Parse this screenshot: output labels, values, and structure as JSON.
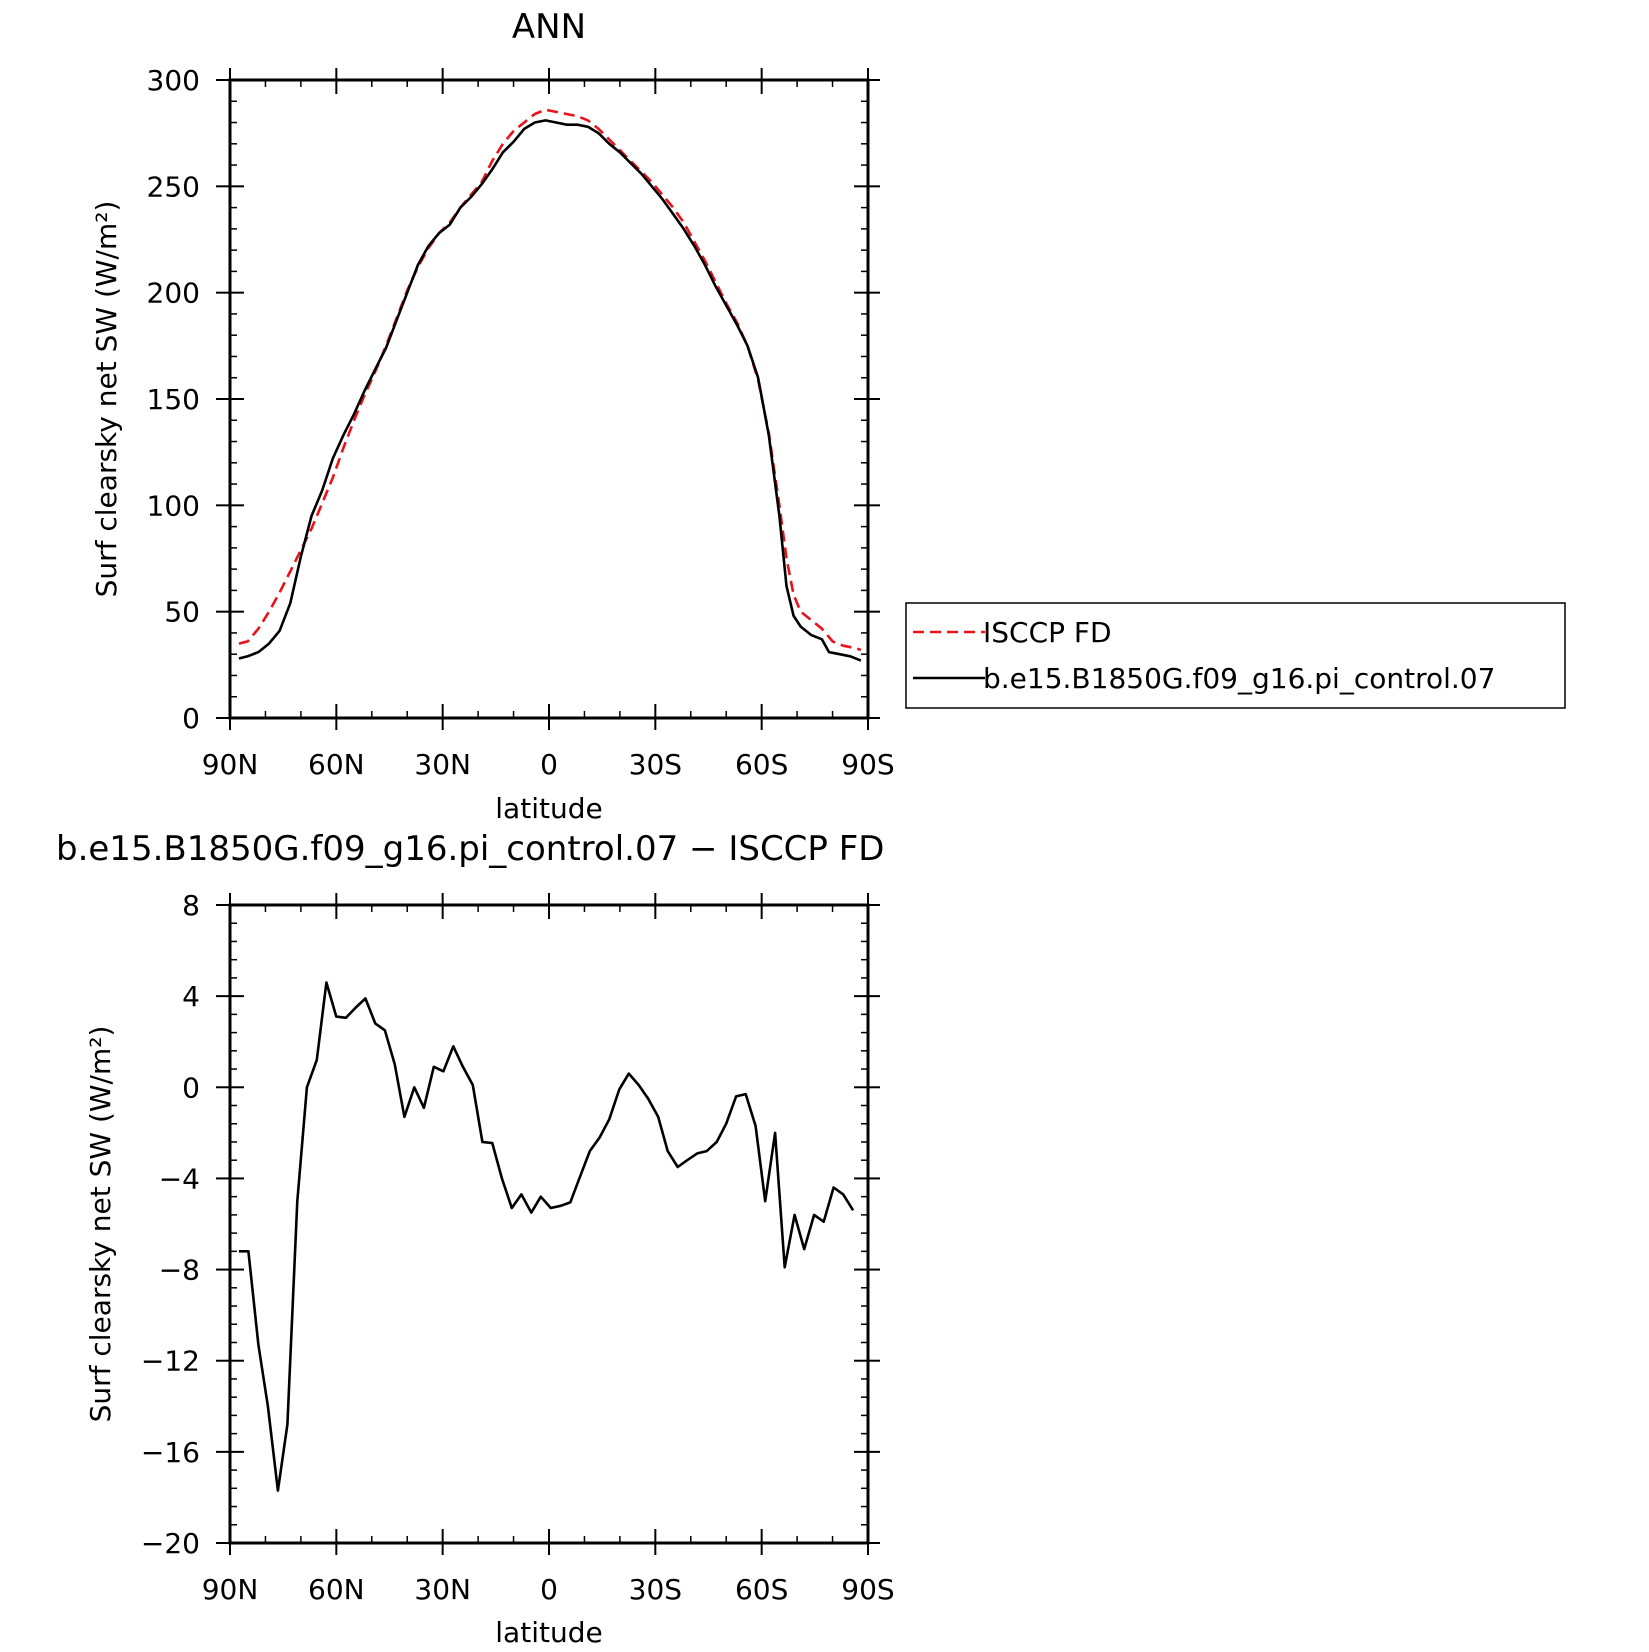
{
  "chart_data": [
    {
      "type": "line",
      "title": "ANN",
      "xlabel": "latitude",
      "ylabel": "Surf clearsky net SW (W/m²)",
      "xlim": [
        90,
        -90
      ],
      "ylim": [
        0,
        300
      ],
      "xticks": [
        90,
        60,
        30,
        0,
        -30,
        -60,
        -90
      ],
      "xtick_labels": [
        "90N",
        "60N",
        "30N",
        "0",
        "30S",
        "60S",
        "90S"
      ],
      "yticks": [
        0,
        50,
        100,
        150,
        200,
        250,
        300
      ],
      "ytick_labels": [
        "0",
        "50",
        "100",
        "150",
        "200",
        "250",
        "300"
      ],
      "legend_position": "right",
      "series": [
        {
          "name": "ISCCP FD",
          "color": "#e8141a",
          "dash": "dashed",
          "points": [
            [
              87.5,
              35
            ],
            [
              85,
              36
            ],
            [
              82,
              42
            ],
            [
              79,
              50
            ],
            [
              76,
              59
            ],
            [
              73,
              69
            ],
            [
              70,
              79
            ],
            [
              67,
              89
            ],
            [
              64,
              101
            ],
            [
              61,
              113
            ],
            [
              58,
              127
            ],
            [
              55,
              140
            ],
            [
              52,
              152
            ],
            [
              49,
              163
            ],
            [
              46,
              175
            ],
            [
              43,
              188
            ],
            [
              40,
              201
            ],
            [
              37,
              212
            ],
            [
              34,
              221
            ],
            [
              31,
              228
            ],
            [
              28,
              233
            ],
            [
              25,
              240
            ],
            [
              22,
              246
            ],
            [
              19,
              252
            ],
            [
              16,
              262
            ],
            [
              13,
              270
            ],
            [
              10,
              276
            ],
            [
              7,
              280
            ],
            [
              4,
              284
            ],
            [
              1,
              286
            ],
            [
              -2,
              285
            ],
            [
              -5,
              284
            ],
            [
              -8,
              283
            ],
            [
              -11,
              281
            ],
            [
              -14,
              277
            ],
            [
              -17,
              272
            ],
            [
              -20,
              267
            ],
            [
              -23,
              262
            ],
            [
              -26,
              257
            ],
            [
              -29,
              252
            ],
            [
              -32,
              246
            ],
            [
              -35,
              240
            ],
            [
              -38,
              233
            ],
            [
              -41,
              224
            ],
            [
              -44,
              215
            ],
            [
              -47,
              205
            ],
            [
              -50,
              195
            ],
            [
              -53,
              186
            ],
            [
              -56,
              175
            ],
            [
              -59,
              159
            ],
            [
              -62,
              134
            ],
            [
              -65,
              100
            ],
            [
              -67,
              75
            ],
            [
              -69,
              58
            ],
            [
              -71,
              50
            ],
            [
              -74,
              46
            ],
            [
              -77,
              42
            ],
            [
              -80,
              36
            ],
            [
              -83,
              34
            ],
            [
              -86,
              33
            ],
            [
              -88,
              32
            ]
          ]
        },
        {
          "name": "b.e15.B1850G.f09_g16.pi_control.07",
          "color": "#000000",
          "dash": "solid",
          "points": [
            [
              87.5,
              28
            ],
            [
              85,
              29
            ],
            [
              82,
              31
            ],
            [
              79,
              35
            ],
            [
              76,
              41
            ],
            [
              73,
              54
            ],
            [
              70,
              76
            ],
            [
              67,
              95
            ],
            [
              64,
              107
            ],
            [
              61,
              122
            ],
            [
              58,
              133
            ],
            [
              55,
              143
            ],
            [
              52,
              154
            ],
            [
              49,
              164
            ],
            [
              46,
              174
            ],
            [
              43,
              187
            ],
            [
              40,
              200
            ],
            [
              37,
              213
            ],
            [
              34,
              222
            ],
            [
              31,
              228
            ],
            [
              28,
              232
            ],
            [
              25,
              240
            ],
            [
              22,
              245
            ],
            [
              19,
              251
            ],
            [
              16,
              258
            ],
            [
              13,
              266
            ],
            [
              10,
              271
            ],
            [
              7,
              277
            ],
            [
              4,
              280
            ],
            [
              1,
              281
            ],
            [
              -2,
              280
            ],
            [
              -5,
              279
            ],
            [
              -8,
              279
            ],
            [
              -11,
              278
            ],
            [
              -14,
              275
            ],
            [
              -17,
              270
            ],
            [
              -20,
              266
            ],
            [
              -23,
              261
            ],
            [
              -26,
              256
            ],
            [
              -29,
              250
            ],
            [
              -32,
              244
            ],
            [
              -35,
              237
            ],
            [
              -38,
              230
            ],
            [
              -41,
              222
            ],
            [
              -44,
              213
            ],
            [
              -47,
              203
            ],
            [
              -50,
              194
            ],
            [
              -53,
              185
            ],
            [
              -56,
              175
            ],
            [
              -59,
              160
            ],
            [
              -62,
              133
            ],
            [
              -65,
              95
            ],
            [
              -67,
              62
            ],
            [
              -69,
              48
            ],
            [
              -71,
              43
            ],
            [
              -74,
              39
            ],
            [
              -77,
              37
            ],
            [
              -79,
              31
            ],
            [
              -82,
              30
            ],
            [
              -85,
              29
            ],
            [
              -88,
              27
            ]
          ]
        }
      ]
    },
    {
      "type": "line",
      "title": "b.e15.B1850G.f09_g16.pi_control.07 − ISCCP FD",
      "xlabel": "latitude",
      "ylabel": "Surf clearsky net SW (W/m²)",
      "xlim": [
        90,
        -90
      ],
      "ylim": [
        -20,
        8
      ],
      "xticks": [
        90,
        60,
        30,
        0,
        -30,
        -60,
        -90
      ],
      "xtick_labels": [
        "90N",
        "60N",
        "30N",
        "0",
        "30S",
        "60S",
        "90S"
      ],
      "yticks": [
        8,
        4,
        0,
        -4,
        -8,
        -12,
        -16,
        -20
      ],
      "ytick_labels": [
        "8",
        "4",
        "0",
        "−4",
        "−8",
        "−12",
        "−16",
        "−20"
      ],
      "series": [
        {
          "color": "#000000",
          "dash": "solid",
          "points": [
            [
              87.5,
              -7.2
            ],
            [
              84.8,
              -7.2
            ],
            [
              82,
              -11.3
            ],
            [
              79.3,
              -14
            ],
            [
              76.5,
              -17.7
            ],
            [
              73.8,
              -14.8
            ],
            [
              71,
              -5
            ],
            [
              68.3,
              0
            ],
            [
              65.5,
              1.2
            ],
            [
              62.8,
              4.6
            ],
            [
              60,
              3.1
            ],
            [
              57.3,
              3.05
            ],
            [
              54.5,
              3.5
            ],
            [
              51.8,
              3.9
            ],
            [
              49,
              2.8
            ],
            [
              46.3,
              2.5
            ],
            [
              43.5,
              1
            ],
            [
              40.8,
              -1.3
            ],
            [
              38,
              0
            ],
            [
              35.3,
              -0.9
            ],
            [
              32.5,
              0.9
            ],
            [
              29.8,
              0.7
            ],
            [
              27,
              1.8
            ],
            [
              24.3,
              0.9
            ],
            [
              21.5,
              0.1
            ],
            [
              18.8,
              -2.4
            ],
            [
              16,
              -2.45
            ],
            [
              13.3,
              -4
            ],
            [
              10.5,
              -5.3
            ],
            [
              7.8,
              -4.7
            ],
            [
              5,
              -5.5
            ],
            [
              2.3,
              -4.8
            ],
            [
              -0.5,
              -5.3
            ],
            [
              -3.3,
              -5.2
            ],
            [
              -6,
              -5.05
            ],
            [
              -8.8,
              -3.9
            ],
            [
              -11.5,
              -2.8
            ],
            [
              -14.3,
              -2.2
            ],
            [
              -17,
              -1.4
            ],
            [
              -19.8,
              -0.1
            ],
            [
              -22.5,
              0.6
            ],
            [
              -25.3,
              0.1
            ],
            [
              -28,
              -0.5
            ],
            [
              -30.8,
              -1.3
            ],
            [
              -33.5,
              -2.8
            ],
            [
              -36.3,
              -3.5
            ],
            [
              -39,
              -3.2
            ],
            [
              -41.8,
              -2.9
            ],
            [
              -44.5,
              -2.8
            ],
            [
              -47.3,
              -2.4
            ],
            [
              -50,
              -1.6
            ],
            [
              -52.8,
              -0.4
            ],
            [
              -55.5,
              -0.3
            ],
            [
              -58.3,
              -1.7
            ],
            [
              -61,
              -5
            ],
            [
              -63.8,
              -2
            ],
            [
              -66.5,
              -7.9
            ],
            [
              -69.3,
              -5.6
            ],
            [
              -72,
              -7.1
            ],
            [
              -74.8,
              -5.6
            ],
            [
              -77.5,
              -5.9
            ],
            [
              -80.3,
              -4.4
            ],
            [
              -83,
              -4.7
            ],
            [
              -85.8,
              -5.4
            ]
          ]
        }
      ]
    }
  ]
}
